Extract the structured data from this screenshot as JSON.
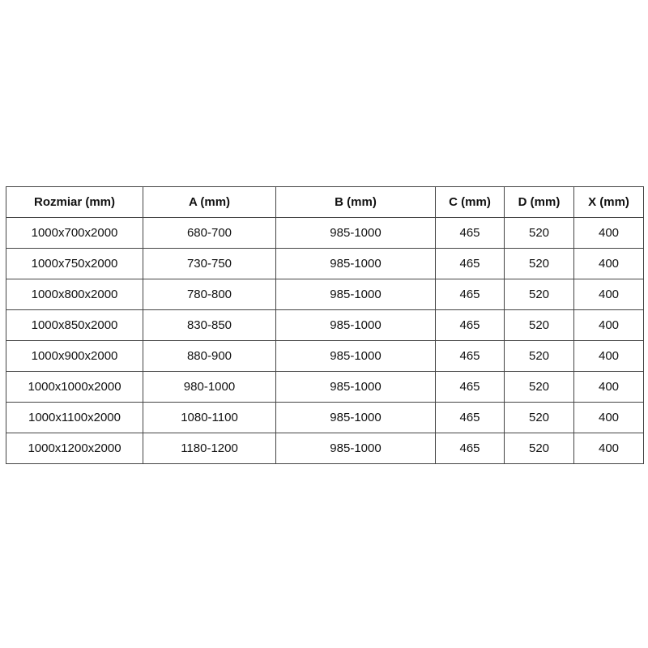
{
  "table": {
    "headers": [
      "Rozmiar (mm)",
      "A (mm)",
      "B (mm)",
      "C (mm)",
      "D (mm)",
      "X (mm)"
    ],
    "rows": [
      [
        "1000x700x2000",
        "680-700",
        "985-1000",
        "465",
        "520",
        "400"
      ],
      [
        "1000x750x2000",
        "730-750",
        "985-1000",
        "465",
        "520",
        "400"
      ],
      [
        "1000x800x2000",
        "780-800",
        "985-1000",
        "465",
        "520",
        "400"
      ],
      [
        "1000x850x2000",
        "830-850",
        "985-1000",
        "465",
        "520",
        "400"
      ],
      [
        "1000x900x2000",
        "880-900",
        "985-1000",
        "465",
        "520",
        "400"
      ],
      [
        "1000x1000x2000",
        "980-1000",
        "985-1000",
        "465",
        "520",
        "400"
      ],
      [
        "1000x1100x2000",
        "1080-1100",
        "985-1000",
        "465",
        "520",
        "400"
      ],
      [
        "1000x1200x2000",
        "1180-1200",
        "985-1000",
        "465",
        "520",
        "400"
      ]
    ]
  }
}
